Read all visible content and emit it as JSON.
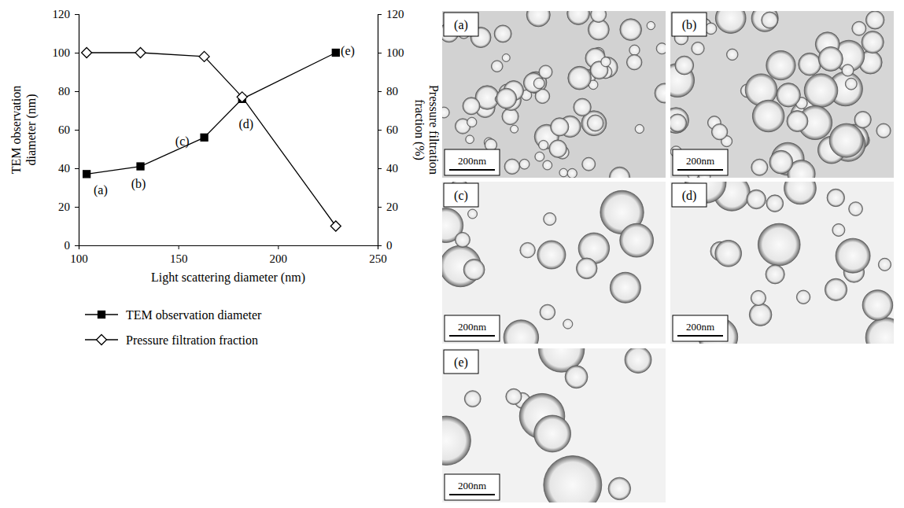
{
  "chart_data": {
    "type": "line",
    "x_label": "Light scattering diameter (nm)",
    "y_label": "TEM observation diameter (nm)",
    "y2_label": "Pressure filtration fraction (%)",
    "x": [
      104,
      131,
      163,
      182,
      229
    ],
    "series": [
      {
        "name": "TEM observation diameter",
        "color": "#000000",
        "marker": "square",
        "line_style": "solid",
        "values": [
          37,
          41,
          56,
          76,
          100
        ]
      },
      {
        "name": "Pressure filtration fraction",
        "color": "#000000",
        "marker": "diamond-open",
        "line_style": "solid",
        "axis": "y2",
        "values": [
          100,
          100,
          98,
          77,
          10
        ]
      }
    ],
    "xlim": [
      100,
      250
    ],
    "xticks": [
      100,
      150,
      200,
      250
    ],
    "ylim": [
      0,
      120
    ],
    "yticks": [
      0,
      20,
      40,
      60,
      80,
      100,
      120
    ],
    "y2lim": [
      0,
      120
    ],
    "y2ticks": [
      0,
      20,
      40,
      60,
      80,
      100,
      120
    ],
    "annotations": [
      {
        "text": "(a)",
        "x": 111,
        "y": 29
      },
      {
        "text": "(b)",
        "x": 130,
        "y": 32
      },
      {
        "text": "(c)",
        "x": 152,
        "y": 54
      },
      {
        "text": "(d)",
        "x": 184,
        "y": 63
      },
      {
        "text": "(e)",
        "x": 235,
        "y": 101
      }
    ],
    "legend": "bottom"
  },
  "micrographs": [
    {
      "label": "(a)",
      "scale_bar": "200nm"
    },
    {
      "label": "(b)",
      "scale_bar": "200nm"
    },
    {
      "label": "(c)",
      "scale_bar": "200nm"
    },
    {
      "label": "(d)",
      "scale_bar": "200nm"
    },
    {
      "label": "(e)",
      "scale_bar": "200nm"
    }
  ]
}
